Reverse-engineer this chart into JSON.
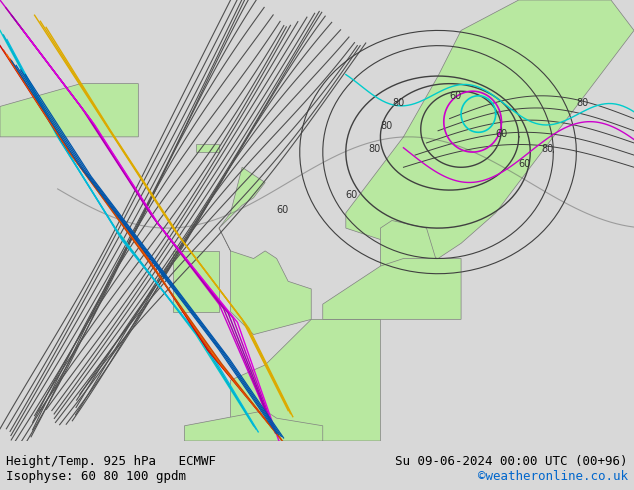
{
  "title_left": "Height/Temp. 925 hPa   ECMWF",
  "title_right": "Su 09-06-2024 00:00 UTC (00+96)",
  "subtitle_left": "Isophyse: 60 80 100 gpdm",
  "subtitle_right": "©weatheronline.co.uk",
  "subtitle_right_color": "#0066cc",
  "bg_color": "#d8d8d8",
  "land_color": "#b8e8a0",
  "sea_color": "#d8d8d8",
  "border_color": "#808080",
  "text_color": "#000000",
  "bottom_bar_color": "#ffffff",
  "figsize": [
    6.34,
    4.9
  ],
  "dpi": 100
}
